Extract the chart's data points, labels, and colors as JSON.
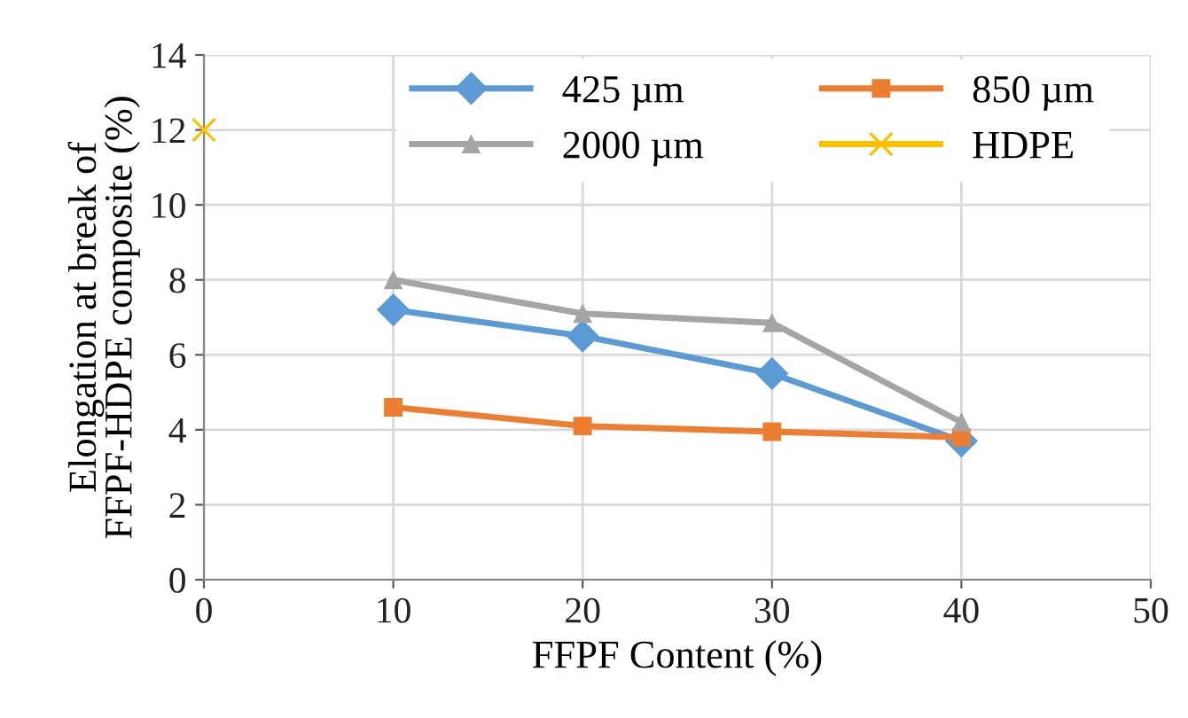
{
  "chart_data": {
    "type": "line",
    "xlabel": "FFPF Content (%)",
    "ylabel": "Elongation at break of\nFFPF-HDPE composite (%)",
    "x": [
      10,
      20,
      30,
      40
    ],
    "series": [
      {
        "name": "425 µm",
        "color": "#5b9bd5",
        "marker": "diamond",
        "values": [
          7.2,
          6.5,
          5.5,
          3.7
        ]
      },
      {
        "name": "850 µm",
        "color": "#ed7d31",
        "marker": "square",
        "values": [
          4.6,
          4.1,
          3.95,
          3.8
        ]
      },
      {
        "name": "2000 µm",
        "color": "#a5a5a5",
        "marker": "triangle",
        "values": [
          8.0,
          7.1,
          6.85,
          4.2
        ]
      },
      {
        "name": "HDPE",
        "color": "#ffc000",
        "marker": "cross",
        "x": [
          0
        ],
        "values": [
          12
        ]
      }
    ],
    "xlim": [
      0,
      50
    ],
    "xticks": [
      0,
      10,
      20,
      30,
      40,
      50
    ],
    "ylim": [
      0,
      14
    ],
    "yticks": [
      0,
      2,
      4,
      6,
      8,
      10,
      12,
      14
    ],
    "grid": true,
    "legend": "top"
  }
}
